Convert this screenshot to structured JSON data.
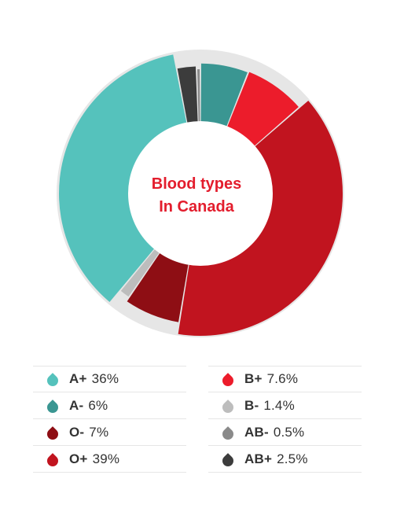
{
  "chart_data": {
    "type": "pie",
    "title_lines": [
      "Blood types",
      "In Canada"
    ],
    "slices": [
      {
        "label": "B+",
        "value": 7.6,
        "display": "7.6%",
        "color": "#ec1c2b"
      },
      {
        "label": "O+",
        "value": 39,
        "display": "39%",
        "color": "#c1141f"
      },
      {
        "label": "O-",
        "value": 7,
        "display": "7%",
        "color": "#8e0e14"
      },
      {
        "label": "B-",
        "value": 1.4,
        "display": "1.4%",
        "color": "#bdbdbd"
      },
      {
        "label": "A+",
        "value": 36,
        "display": "36%",
        "color": "#55c2bc"
      },
      {
        "label": "AB+",
        "value": 2.5,
        "display": "2.5%",
        "color": "#3c3c3c"
      },
      {
        "label": "AB-",
        "value": 0.5,
        "display": "0.5%",
        "color": "#8a8a8a"
      },
      {
        "label": "A-",
        "value": 6,
        "display": "6%",
        "color": "#3a9692"
      }
    ],
    "legend": [
      {
        "label": "A+",
        "display": "36%",
        "color": "#55c2bc"
      },
      {
        "label": "B+",
        "display": "7.6%",
        "color": "#ec1c2b"
      },
      {
        "label": "A-",
        "display": "6%",
        "color": "#3a9692"
      },
      {
        "label": "B-",
        "display": "1.4%",
        "color": "#bdbdbd"
      },
      {
        "label": "O-",
        "display": "7%",
        "color": "#8e0e14"
      },
      {
        "label": "AB-",
        "display": "0.5%",
        "color": "#8a8a8a"
      },
      {
        "label": "O+",
        "display": "39%",
        "color": "#c1141f"
      },
      {
        "label": "AB+",
        "display": "2.5%",
        "color": "#3c3c3c"
      }
    ]
  }
}
